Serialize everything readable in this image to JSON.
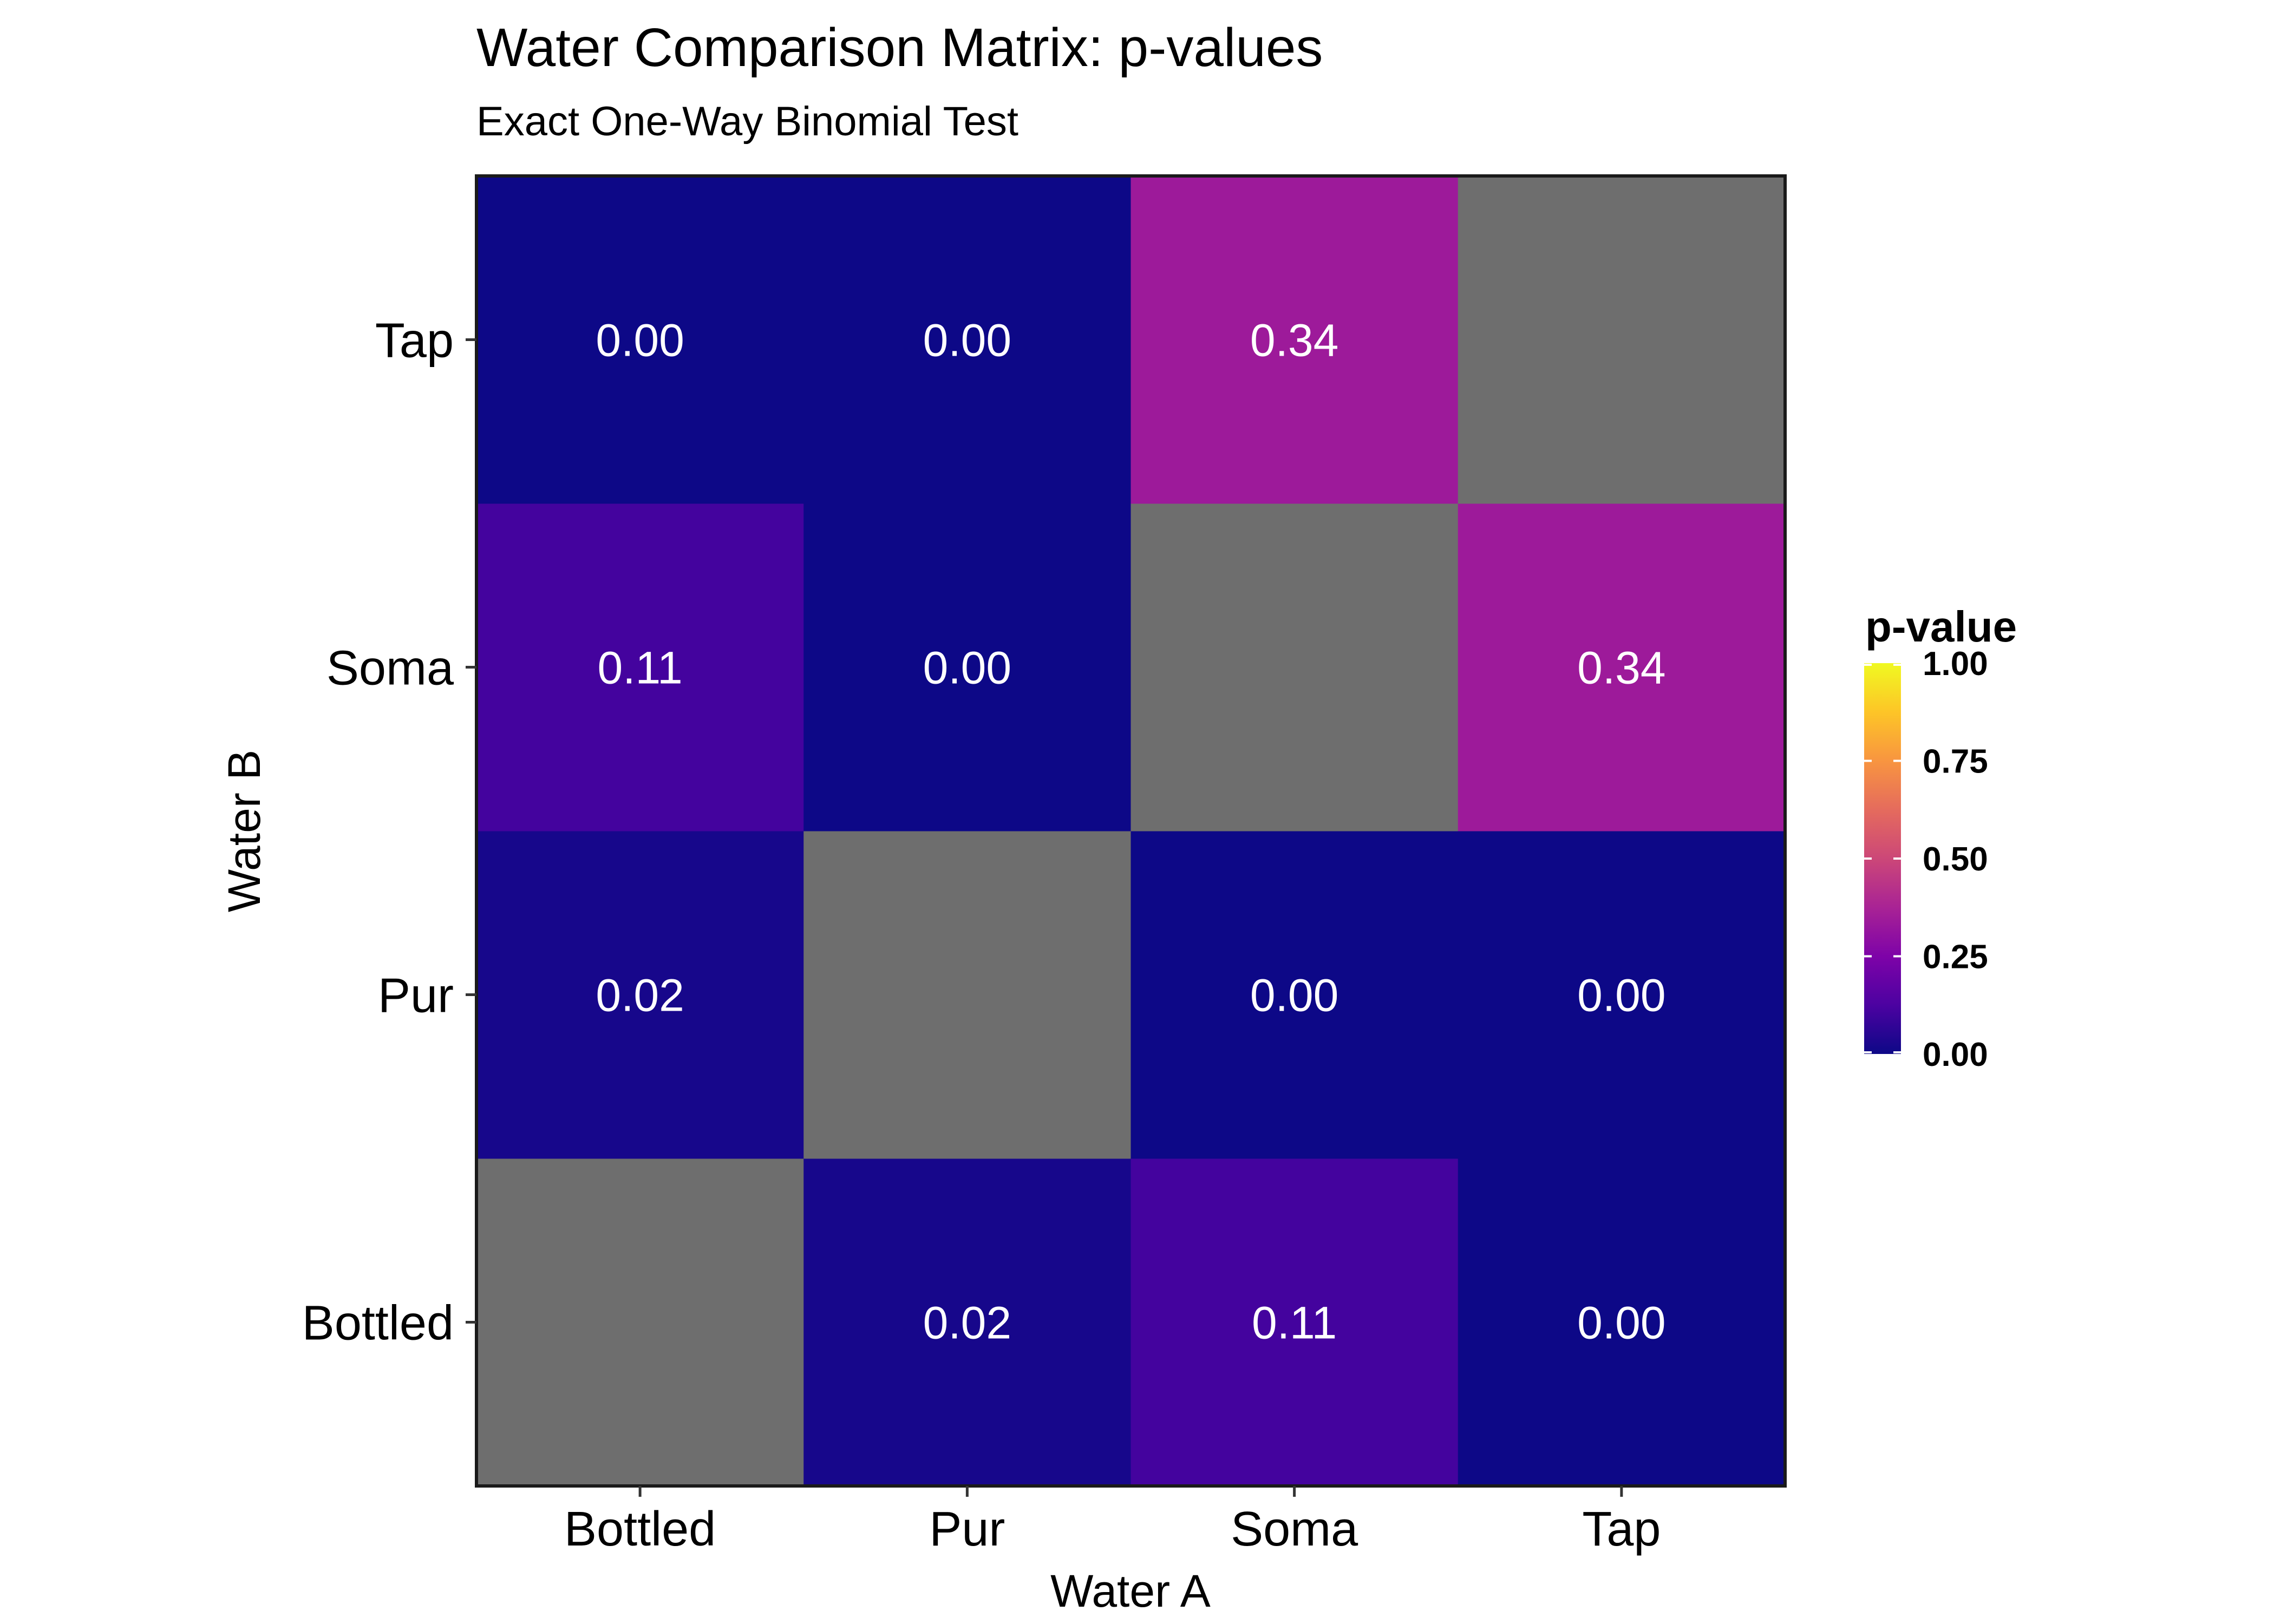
{
  "chart_data": {
    "type": "heatmap",
    "title": "Water Comparison Matrix: p-values",
    "subtitle": "Exact One-Way Binomial Test",
    "xlabel": "Water A",
    "ylabel": "Water B",
    "x_categories": [
      "Bottled",
      "Pur",
      "Soma",
      "Tap"
    ],
    "y_categories": [
      "Bottled",
      "Pur",
      "Soma",
      "Tap"
    ],
    "cells": [
      {
        "x": "Bottled",
        "y": "Bottled",
        "value": null,
        "label": ""
      },
      {
        "x": "Pur",
        "y": "Bottled",
        "value": 0.02,
        "label": "0.02"
      },
      {
        "x": "Soma",
        "y": "Bottled",
        "value": 0.11,
        "label": "0.11"
      },
      {
        "x": "Tap",
        "y": "Bottled",
        "value": 0.0,
        "label": "0.00"
      },
      {
        "x": "Bottled",
        "y": "Pur",
        "value": 0.02,
        "label": "0.02"
      },
      {
        "x": "Pur",
        "y": "Pur",
        "value": null,
        "label": ""
      },
      {
        "x": "Soma",
        "y": "Pur",
        "value": 0.0,
        "label": "0.00"
      },
      {
        "x": "Tap",
        "y": "Pur",
        "value": 0.0,
        "label": "0.00"
      },
      {
        "x": "Bottled",
        "y": "Soma",
        "value": 0.11,
        "label": "0.11"
      },
      {
        "x": "Pur",
        "y": "Soma",
        "value": 0.0,
        "label": "0.00"
      },
      {
        "x": "Soma",
        "y": "Soma",
        "value": null,
        "label": ""
      },
      {
        "x": "Tap",
        "y": "Soma",
        "value": 0.34,
        "label": "0.34"
      },
      {
        "x": "Bottled",
        "y": "Tap",
        "value": 0.0,
        "label": "0.00"
      },
      {
        "x": "Pur",
        "y": "Tap",
        "value": 0.0,
        "label": "0.00"
      },
      {
        "x": "Soma",
        "y": "Tap",
        "value": 0.34,
        "label": "0.34"
      },
      {
        "x": "Tap",
        "y": "Tap",
        "value": null,
        "label": ""
      }
    ],
    "na_color": "#6e6e6e",
    "colorscale": "plasma",
    "legend": {
      "title": "p-value",
      "placement": "right",
      "range": [
        0,
        1
      ],
      "ticks": [
        {
          "value": 0.0,
          "label": "0.00"
        },
        {
          "value": 0.25,
          "label": "0.25"
        },
        {
          "value": 0.5,
          "label": "0.50"
        },
        {
          "value": 0.75,
          "label": "0.75"
        },
        {
          "value": 1.0,
          "label": "1.00"
        }
      ]
    },
    "grid": false
  }
}
